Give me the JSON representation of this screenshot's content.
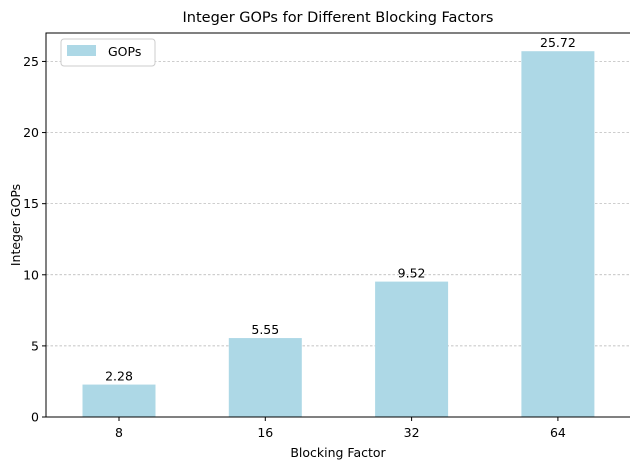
{
  "chart_data": {
    "type": "bar",
    "title": "Integer GOPs for Different Blocking Factors",
    "xlabel": "Blocking Factor",
    "ylabel": "Integer GOPs",
    "categories": [
      "8",
      "16",
      "32",
      "64"
    ],
    "series": [
      {
        "name": "GOPs",
        "values": [
          2.28,
          5.55,
          9.52,
          25.72
        ],
        "color": "#add8e6"
      }
    ],
    "data_labels": [
      "2.28",
      "5.55",
      "9.52",
      "25.72"
    ],
    "ylim": [
      0,
      27.0
    ],
    "yticks": [
      0,
      5,
      10,
      15,
      20,
      25
    ],
    "grid": "horizontal dashed",
    "legend": "top-left"
  }
}
